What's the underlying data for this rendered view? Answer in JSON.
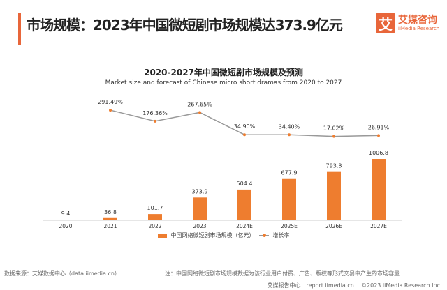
{
  "header": {
    "title": "市场规模：2023年中国微短剧市场规模达373.9亿元",
    "logo_cn": "艾媒咨询",
    "logo_en": "iiMedia Research",
    "logo_mark": "艾"
  },
  "chart_data": {
    "type": "bar+line",
    "title": "2020-2027年中国微短剧市场规模及预测",
    "subtitle": "Market size and forecast of Chinese micro short dramas from 2020 to 2027",
    "categories": [
      "2020",
      "2021",
      "2022",
      "2023",
      "2024E",
      "2025E",
      "2026E",
      "2027E"
    ],
    "series": [
      {
        "name": "中国网络微短剧市场规模（亿元）",
        "type": "bar",
        "color": "#ee7d2f",
        "values": [
          9.4,
          36.8,
          101.7,
          373.9,
          504.4,
          677.9,
          793.3,
          1006.8
        ],
        "labels": [
          "9.4",
          "36.8",
          "101.7",
          "373.9",
          "504.4",
          "677.9",
          "793.3",
          "1006.8"
        ]
      },
      {
        "name": "增长率",
        "type": "line",
        "color": "#999999",
        "marker_color": "#ee7d2f",
        "values": [
          null,
          291.49,
          176.36,
          267.65,
          34.9,
          34.4,
          17.02,
          26.91
        ],
        "labels": [
          "",
          "291.49%",
          "176.36%",
          "267.65%",
          "34.90%",
          "34.40%",
          "17.02%",
          "26.91%"
        ]
      }
    ],
    "legend": "bottom",
    "grid": false
  },
  "footer": {
    "source": "数据来源：艾媒数据中心（data.iimedia.cn）",
    "note": "注：中国网络微短剧市场规模数据为该行业用户付费、广告、版权等形式交易中产生的市场容量",
    "report": "艾媒报告中心：report.iimedia.cn",
    "copyright": "©2023  iiMedia Research Inc"
  }
}
